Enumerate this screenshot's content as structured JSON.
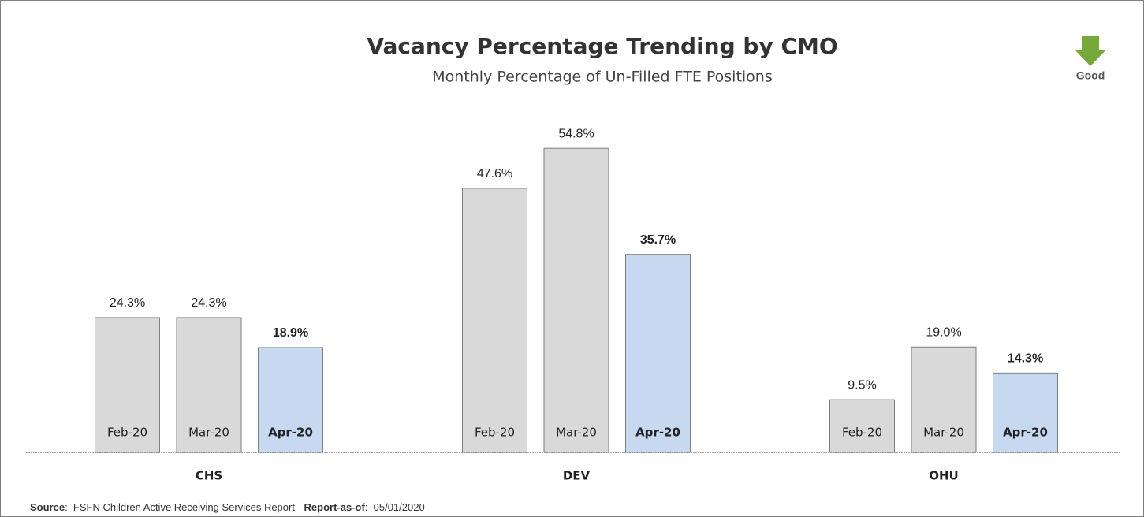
{
  "chart_data": {
    "type": "bar",
    "title": "Vacancy Percentage Trending by CMO",
    "subtitle": "Monthly Percentage of Un-Filled FTE Positions",
    "annotation": "Good",
    "categories": [
      "CHS",
      "DEV",
      "OHU"
    ],
    "series": [
      {
        "name": "Feb-20",
        "color": "#d9d9d9",
        "bold": false,
        "values": [
          24.3,
          47.6,
          9.5
        ],
        "value_labels": [
          "24.3%",
          "47.6%",
          "9.5%"
        ]
      },
      {
        "name": "Mar-20",
        "color": "#d9d9d9",
        "bold": false,
        "values": [
          24.3,
          54.8,
          19.0
        ],
        "value_labels": [
          "24.3%",
          "54.8%",
          "19.0%"
        ]
      },
      {
        "name": "Apr-20",
        "color": "#c6d9f1",
        "bold": true,
        "values": [
          18.9,
          35.7,
          14.3
        ],
        "value_labels": [
          "18.9%",
          "35.7%",
          "14.3%"
        ]
      }
    ],
    "source": {
      "label": "Source",
      "text": ":  FSFN Children Active Receiving Services Report - ",
      "report_label": "Report-as-of",
      "report_date": ":  05/01/2020"
    }
  }
}
